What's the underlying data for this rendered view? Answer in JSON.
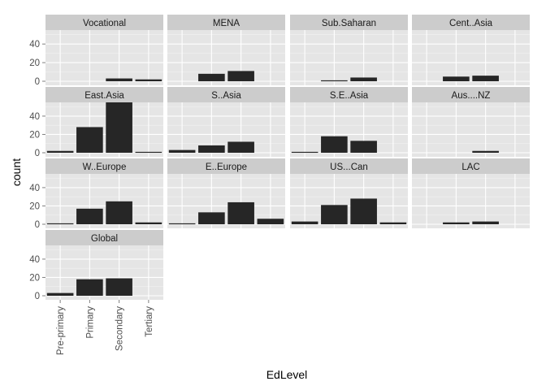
{
  "chart_data": {
    "type": "bar",
    "facet_by": "region",
    "xlabel": "EdLevel",
    "ylabel": "count",
    "categories": [
      "Pre-primary",
      "Primary",
      "Secondary",
      "Tertiary"
    ],
    "y_ticks": [
      0,
      20,
      40
    ],
    "ylim": [
      0,
      55
    ],
    "grid": true,
    "bar_color": "#262626",
    "panel_background": "#e5e5e5",
    "strip_background": "#cccccc",
    "facets": [
      {
        "name": "Vocational",
        "values": [
          null,
          null,
          3,
          2
        ]
      },
      {
        "name": "MENA",
        "values": [
          null,
          8,
          11,
          null
        ]
      },
      {
        "name": "Sub.Saharan",
        "values": [
          null,
          1,
          4,
          null
        ]
      },
      {
        "name": "Cent..Asia",
        "values": [
          null,
          5,
          6,
          null
        ]
      },
      {
        "name": "East.Asia",
        "values": [
          2,
          28,
          55,
          1
        ]
      },
      {
        "name": "S..Asia",
        "values": [
          3,
          8,
          12,
          null
        ]
      },
      {
        "name": "S.E..Asia",
        "values": [
          1,
          18,
          13,
          null
        ]
      },
      {
        "name": "Aus....NZ",
        "values": [
          null,
          null,
          2,
          null
        ]
      },
      {
        "name": "W..Europe",
        "values": [
          1,
          17,
          25,
          2
        ]
      },
      {
        "name": "E..Europe",
        "values": [
          1,
          13,
          24,
          6
        ]
      },
      {
        "name": "US...Can",
        "values": [
          3,
          21,
          28,
          2
        ]
      },
      {
        "name": "LAC",
        "values": [
          null,
          2,
          3,
          null
        ]
      },
      {
        "name": "Global",
        "values": [
          3,
          18,
          19,
          null
        ]
      }
    ]
  }
}
